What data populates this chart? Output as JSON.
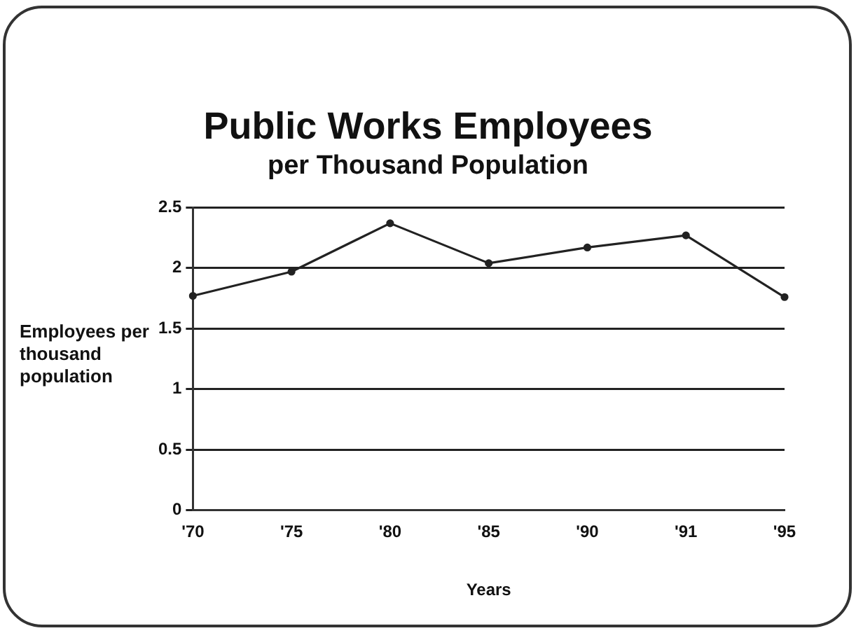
{
  "chart_data": {
    "type": "line",
    "title": "Public Works Employees",
    "subtitle": "per Thousand Population",
    "xlabel": "Years",
    "ylabel": "Employees per thousand population",
    "categories": [
      "'70",
      "'75",
      "'80",
      "'85",
      "'90",
      "'91",
      "'95"
    ],
    "series": [
      {
        "color": "#222222",
        "values": [
          1.77,
          1.97,
          2.37,
          2.04,
          2.17,
          2.27,
          1.76
        ]
      }
    ],
    "ylim": [
      0,
      2.5
    ],
    "yticks": [
      0,
      0.5,
      1,
      1.5,
      2,
      2.5
    ],
    "grid": "y",
    "marker": "circle",
    "line_style": "solid",
    "legend": false
  }
}
